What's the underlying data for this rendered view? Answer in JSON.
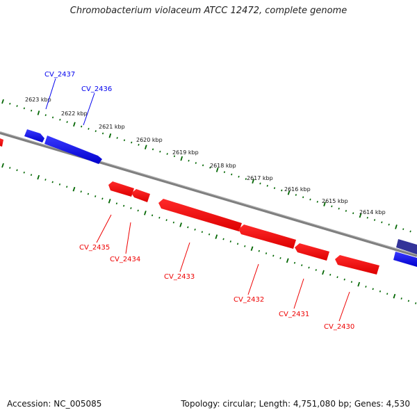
{
  "title": "Chromobacterium violaceum ATCC 12472, complete genome",
  "footer": {
    "accession": "Accession: NC_005085",
    "summary": "Topology: circular; Length: 4,751,080 bp; Genes: 4,530"
  },
  "colors": {
    "forward_gene": "#0000ee",
    "reverse_gene": "#ee0000",
    "other_gene": "#333399",
    "backbone": "#7f7f7f",
    "ticks": "#006600"
  },
  "scale": {
    "unit": "kbp",
    "labels": [
      "2623 kbp",
      "2622 kbp",
      "2621 kbp",
      "2620 kbp",
      "2619 kbp",
      "2618 kbp",
      "2617 kbp",
      "2616 kbp",
      "2615 kbp",
      "2614 kbp"
    ]
  },
  "genes": [
    {
      "name": "CV_2437",
      "strand": "forward"
    },
    {
      "name": "CV_2436",
      "strand": "forward"
    },
    {
      "name": "CV_2435",
      "strand": "reverse"
    },
    {
      "name": "CV_2434",
      "strand": "reverse"
    },
    {
      "name": "CV_2433",
      "strand": "reverse"
    },
    {
      "name": "CV_2432",
      "strand": "reverse"
    },
    {
      "name": "CV_2431",
      "strand": "reverse"
    },
    {
      "name": "CV_2430",
      "strand": "reverse"
    }
  ]
}
